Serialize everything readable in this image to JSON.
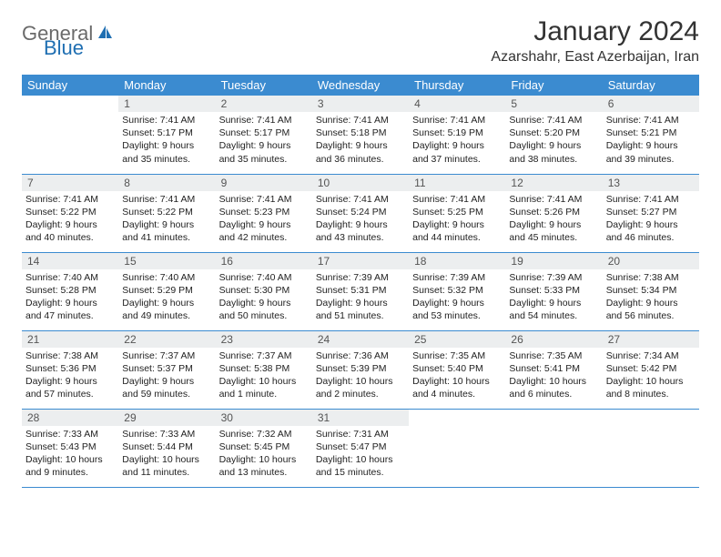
{
  "logo": {
    "general": "General",
    "blue": "Blue",
    "icon_color": "#1f6fb2"
  },
  "title": "January 2024",
  "location": "Azarshahr, East Azerbaijan, Iran",
  "style": {
    "header_bg": "#3b8bd0",
    "header_text": "#ffffff",
    "daynum_bg": "#eceeef",
    "row_border": "#3b8bd0",
    "body_font_size": 10.5,
    "title_font_size": 30
  },
  "weekdays": [
    "Sunday",
    "Monday",
    "Tuesday",
    "Wednesday",
    "Thursday",
    "Friday",
    "Saturday"
  ],
  "weeks": [
    [
      {
        "n": "",
        "sr": "",
        "ss": "",
        "dl": ""
      },
      {
        "n": "1",
        "sr": "7:41 AM",
        "ss": "5:17 PM",
        "dl": "9 hours and 35 minutes."
      },
      {
        "n": "2",
        "sr": "7:41 AM",
        "ss": "5:17 PM",
        "dl": "9 hours and 35 minutes."
      },
      {
        "n": "3",
        "sr": "7:41 AM",
        "ss": "5:18 PM",
        "dl": "9 hours and 36 minutes."
      },
      {
        "n": "4",
        "sr": "7:41 AM",
        "ss": "5:19 PM",
        "dl": "9 hours and 37 minutes."
      },
      {
        "n": "5",
        "sr": "7:41 AM",
        "ss": "5:20 PM",
        "dl": "9 hours and 38 minutes."
      },
      {
        "n": "6",
        "sr": "7:41 AM",
        "ss": "5:21 PM",
        "dl": "9 hours and 39 minutes."
      }
    ],
    [
      {
        "n": "7",
        "sr": "7:41 AM",
        "ss": "5:22 PM",
        "dl": "9 hours and 40 minutes."
      },
      {
        "n": "8",
        "sr": "7:41 AM",
        "ss": "5:22 PM",
        "dl": "9 hours and 41 minutes."
      },
      {
        "n": "9",
        "sr": "7:41 AM",
        "ss": "5:23 PM",
        "dl": "9 hours and 42 minutes."
      },
      {
        "n": "10",
        "sr": "7:41 AM",
        "ss": "5:24 PM",
        "dl": "9 hours and 43 minutes."
      },
      {
        "n": "11",
        "sr": "7:41 AM",
        "ss": "5:25 PM",
        "dl": "9 hours and 44 minutes."
      },
      {
        "n": "12",
        "sr": "7:41 AM",
        "ss": "5:26 PM",
        "dl": "9 hours and 45 minutes."
      },
      {
        "n": "13",
        "sr": "7:41 AM",
        "ss": "5:27 PM",
        "dl": "9 hours and 46 minutes."
      }
    ],
    [
      {
        "n": "14",
        "sr": "7:40 AM",
        "ss": "5:28 PM",
        "dl": "9 hours and 47 minutes."
      },
      {
        "n": "15",
        "sr": "7:40 AM",
        "ss": "5:29 PM",
        "dl": "9 hours and 49 minutes."
      },
      {
        "n": "16",
        "sr": "7:40 AM",
        "ss": "5:30 PM",
        "dl": "9 hours and 50 minutes."
      },
      {
        "n": "17",
        "sr": "7:39 AM",
        "ss": "5:31 PM",
        "dl": "9 hours and 51 minutes."
      },
      {
        "n": "18",
        "sr": "7:39 AM",
        "ss": "5:32 PM",
        "dl": "9 hours and 53 minutes."
      },
      {
        "n": "19",
        "sr": "7:39 AM",
        "ss": "5:33 PM",
        "dl": "9 hours and 54 minutes."
      },
      {
        "n": "20",
        "sr": "7:38 AM",
        "ss": "5:34 PM",
        "dl": "9 hours and 56 minutes."
      }
    ],
    [
      {
        "n": "21",
        "sr": "7:38 AM",
        "ss": "5:36 PM",
        "dl": "9 hours and 57 minutes."
      },
      {
        "n": "22",
        "sr": "7:37 AM",
        "ss": "5:37 PM",
        "dl": "9 hours and 59 minutes."
      },
      {
        "n": "23",
        "sr": "7:37 AM",
        "ss": "5:38 PM",
        "dl": "10 hours and 1 minute."
      },
      {
        "n": "24",
        "sr": "7:36 AM",
        "ss": "5:39 PM",
        "dl": "10 hours and 2 minutes."
      },
      {
        "n": "25",
        "sr": "7:35 AM",
        "ss": "5:40 PM",
        "dl": "10 hours and 4 minutes."
      },
      {
        "n": "26",
        "sr": "7:35 AM",
        "ss": "5:41 PM",
        "dl": "10 hours and 6 minutes."
      },
      {
        "n": "27",
        "sr": "7:34 AM",
        "ss": "5:42 PM",
        "dl": "10 hours and 8 minutes."
      }
    ],
    [
      {
        "n": "28",
        "sr": "7:33 AM",
        "ss": "5:43 PM",
        "dl": "10 hours and 9 minutes."
      },
      {
        "n": "29",
        "sr": "7:33 AM",
        "ss": "5:44 PM",
        "dl": "10 hours and 11 minutes."
      },
      {
        "n": "30",
        "sr": "7:32 AM",
        "ss": "5:45 PM",
        "dl": "10 hours and 13 minutes."
      },
      {
        "n": "31",
        "sr": "7:31 AM",
        "ss": "5:47 PM",
        "dl": "10 hours and 15 minutes."
      },
      {
        "n": "",
        "sr": "",
        "ss": "",
        "dl": ""
      },
      {
        "n": "",
        "sr": "",
        "ss": "",
        "dl": ""
      },
      {
        "n": "",
        "sr": "",
        "ss": "",
        "dl": ""
      }
    ]
  ]
}
